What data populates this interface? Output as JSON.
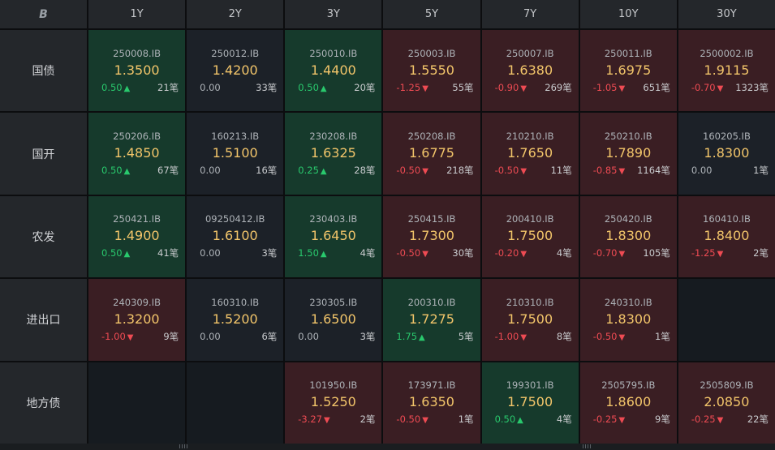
{
  "header": {
    "corner_icon": "B",
    "columns": [
      "1Y",
      "2Y",
      "3Y",
      "5Y",
      "7Y",
      "10Y",
      "30Y"
    ]
  },
  "rows": [
    {
      "label": "国债",
      "cells": [
        {
          "code": "250008.IB",
          "price": "1.3500",
          "change": "0.50",
          "dir": "up",
          "count": "21笔"
        },
        {
          "code": "250012.IB",
          "price": "1.4200",
          "change": "0.00",
          "dir": "flat",
          "count": "33笔"
        },
        {
          "code": "250010.IB",
          "price": "1.4400",
          "change": "0.50",
          "dir": "up",
          "count": "20笔"
        },
        {
          "code": "250003.IB",
          "price": "1.5550",
          "change": "-1.25",
          "dir": "down",
          "count": "55笔"
        },
        {
          "code": "250007.IB",
          "price": "1.6380",
          "change": "-0.90",
          "dir": "down",
          "count": "269笔"
        },
        {
          "code": "250011.IB",
          "price": "1.6975",
          "change": "-1.05",
          "dir": "down",
          "count": "651笔"
        },
        {
          "code": "2500002.IB",
          "price": "1.9115",
          "change": "-0.70",
          "dir": "down",
          "count": "1323笔"
        }
      ]
    },
    {
      "label": "国开",
      "cells": [
        {
          "code": "250206.IB",
          "price": "1.4850",
          "change": "0.50",
          "dir": "up",
          "count": "67笔"
        },
        {
          "code": "160213.IB",
          "price": "1.5100",
          "change": "0.00",
          "dir": "flat",
          "count": "16笔"
        },
        {
          "code": "230208.IB",
          "price": "1.6325",
          "change": "0.25",
          "dir": "up",
          "count": "28笔"
        },
        {
          "code": "250208.IB",
          "price": "1.6775",
          "change": "-0.50",
          "dir": "down",
          "count": "218笔"
        },
        {
          "code": "210210.IB",
          "price": "1.7650",
          "change": "-0.50",
          "dir": "down",
          "count": "11笔"
        },
        {
          "code": "250210.IB",
          "price": "1.7890",
          "change": "-0.85",
          "dir": "down",
          "count": "1164笔"
        },
        {
          "code": "160205.IB",
          "price": "1.8300",
          "change": "0.00",
          "dir": "flat",
          "count": "1笔"
        }
      ]
    },
    {
      "label": "农发",
      "cells": [
        {
          "code": "250421.IB",
          "price": "1.4900",
          "change": "0.50",
          "dir": "up",
          "count": "41笔"
        },
        {
          "code": "09250412.IB",
          "price": "1.6100",
          "change": "0.00",
          "dir": "flat",
          "count": "3笔"
        },
        {
          "code": "230403.IB",
          "price": "1.6450",
          "change": "1.50",
          "dir": "up",
          "count": "4笔"
        },
        {
          "code": "250415.IB",
          "price": "1.7300",
          "change": "-0.50",
          "dir": "down",
          "count": "30笔"
        },
        {
          "code": "200410.IB",
          "price": "1.7500",
          "change": "-0.20",
          "dir": "down",
          "count": "4笔"
        },
        {
          "code": "250420.IB",
          "price": "1.8300",
          "change": "-0.70",
          "dir": "down",
          "count": "105笔"
        },
        {
          "code": "160410.IB",
          "price": "1.8400",
          "change": "-1.25",
          "dir": "down",
          "count": "2笔"
        }
      ]
    },
    {
      "label": "进出口",
      "cells": [
        {
          "code": "240309.IB",
          "price": "1.3200",
          "change": "-1.00",
          "dir": "down",
          "count": "9笔"
        },
        {
          "code": "160310.IB",
          "price": "1.5200",
          "change": "0.00",
          "dir": "flat",
          "count": "6笔"
        },
        {
          "code": "230305.IB",
          "price": "1.6500",
          "change": "0.00",
          "dir": "flat",
          "count": "3笔"
        },
        {
          "code": "200310.IB",
          "price": "1.7275",
          "change": "1.75",
          "dir": "up",
          "count": "5笔"
        },
        {
          "code": "210310.IB",
          "price": "1.7500",
          "change": "-1.00",
          "dir": "down",
          "count": "8笔"
        },
        {
          "code": "240310.IB",
          "price": "1.8300",
          "change": "-0.50",
          "dir": "down",
          "count": "1笔"
        },
        null
      ]
    },
    {
      "label": "地方债",
      "cells": [
        null,
        null,
        {
          "code": "101950.IB",
          "price": "1.5250",
          "change": "-3.27",
          "dir": "down",
          "count": "2笔"
        },
        {
          "code": "173971.IB",
          "price": "1.6350",
          "change": "-0.50",
          "dir": "down",
          "count": "1笔"
        },
        {
          "code": "199301.IB",
          "price": "1.7500",
          "change": "0.50",
          "dir": "up",
          "count": "4笔"
        },
        {
          "code": "2505795.IB",
          "price": "1.8600",
          "change": "-0.25",
          "dir": "down",
          "count": "9笔"
        },
        {
          "code": "2505809.IB",
          "price": "2.0850",
          "change": "-0.25",
          "dir": "down",
          "count": "22笔"
        }
      ]
    }
  ],
  "colors": {
    "up": "#29c96d",
    "down": "#ee4b53",
    "price": "#f2c56a"
  }
}
